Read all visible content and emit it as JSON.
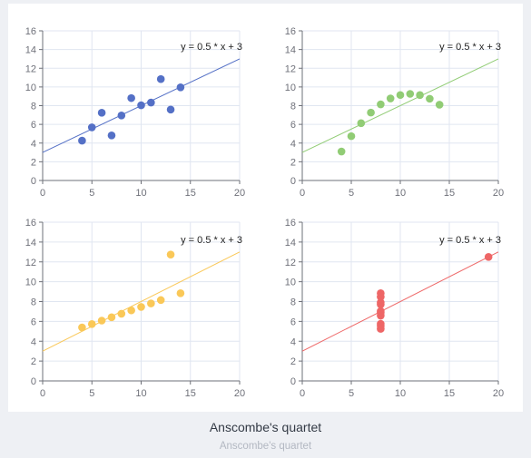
{
  "caption": {
    "title": "Anscombe's quartet",
    "subtitle": "Anscombe's quartet"
  },
  "chart_data": [
    {
      "type": "scatter",
      "title": "",
      "xlim": [
        0,
        20
      ],
      "ylim": [
        0,
        16
      ],
      "x_ticks": [
        0,
        5,
        10,
        15,
        20
      ],
      "y_ticks": [
        0,
        2,
        4,
        6,
        8,
        10,
        12,
        14,
        16
      ],
      "grid": true,
      "color": "#5470c6",
      "points": [
        [
          10,
          8.04
        ],
        [
          8,
          6.95
        ],
        [
          13,
          7.58
        ],
        [
          9,
          8.81
        ],
        [
          11,
          8.33
        ],
        [
          14,
          9.96
        ],
        [
          6,
          7.24
        ],
        [
          4,
          4.26
        ],
        [
          12,
          10.84
        ],
        [
          7,
          4.82
        ],
        [
          5,
          5.68
        ]
      ],
      "trendline": {
        "label": "y = 0.5 * x + 3",
        "slope": 0.5,
        "intercept": 3
      }
    },
    {
      "type": "scatter",
      "title": "",
      "xlim": [
        0,
        20
      ],
      "ylim": [
        0,
        16
      ],
      "x_ticks": [
        0,
        5,
        10,
        15,
        20
      ],
      "y_ticks": [
        0,
        2,
        4,
        6,
        8,
        10,
        12,
        14,
        16
      ],
      "grid": true,
      "color": "#91cc75",
      "points": [
        [
          10,
          9.14
        ],
        [
          8,
          8.14
        ],
        [
          13,
          8.74
        ],
        [
          9,
          8.77
        ],
        [
          11,
          9.26
        ],
        [
          14,
          8.1
        ],
        [
          6,
          6.13
        ],
        [
          4,
          3.1
        ],
        [
          12,
          9.13
        ],
        [
          7,
          7.26
        ],
        [
          5,
          4.74
        ]
      ],
      "trendline": {
        "label": "y = 0.5 * x + 3",
        "slope": 0.5,
        "intercept": 3
      }
    },
    {
      "type": "scatter",
      "title": "",
      "xlim": [
        0,
        20
      ],
      "ylim": [
        0,
        16
      ],
      "x_ticks": [
        0,
        5,
        10,
        15,
        20
      ],
      "y_ticks": [
        0,
        2,
        4,
        6,
        8,
        10,
        12,
        14,
        16
      ],
      "grid": true,
      "color": "#fac858",
      "points": [
        [
          10,
          7.46
        ],
        [
          8,
          6.77
        ],
        [
          13,
          12.74
        ],
        [
          9,
          7.11
        ],
        [
          11,
          7.81
        ],
        [
          14,
          8.84
        ],
        [
          6,
          6.08
        ],
        [
          4,
          5.39
        ],
        [
          12,
          8.15
        ],
        [
          7,
          6.42
        ],
        [
          5,
          5.73
        ]
      ],
      "trendline": {
        "label": "y = 0.5 * x + 3",
        "slope": 0.5,
        "intercept": 3
      }
    },
    {
      "type": "scatter",
      "title": "",
      "xlim": [
        0,
        20
      ],
      "ylim": [
        0,
        16
      ],
      "x_ticks": [
        0,
        5,
        10,
        15,
        20
      ],
      "y_ticks": [
        0,
        2,
        4,
        6,
        8,
        10,
        12,
        14,
        16
      ],
      "grid": true,
      "color": "#ee6666",
      "points": [
        [
          8,
          6.58
        ],
        [
          8,
          5.76
        ],
        [
          8,
          7.71
        ],
        [
          8,
          8.84
        ],
        [
          8,
          8.47
        ],
        [
          8,
          7.04
        ],
        [
          8,
          5.25
        ],
        [
          19,
          12.5
        ],
        [
          8,
          5.56
        ],
        [
          8,
          7.91
        ],
        [
          8,
          6.89
        ]
      ],
      "trendline": {
        "label": "y = 0.5 * x + 3",
        "slope": 0.5,
        "intercept": 3
      }
    }
  ]
}
